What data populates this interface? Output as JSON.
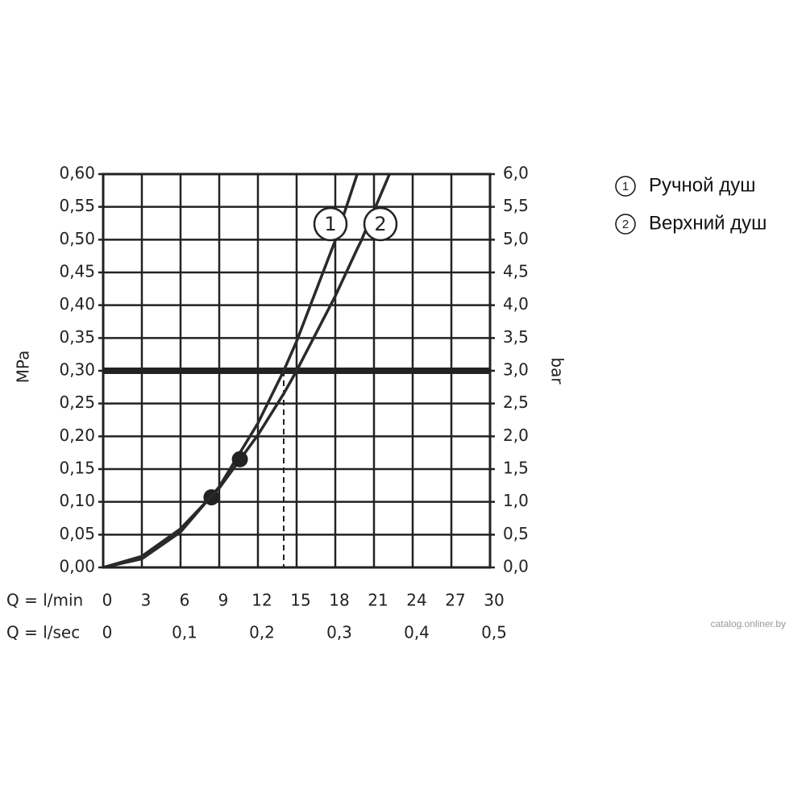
{
  "chart_data": {
    "type": "line",
    "xlabel": "Q = l/min",
    "x2label": "Q = l/sec",
    "ylabel": "MPa",
    "y2label": "bar",
    "xlim": [
      0,
      30
    ],
    "xticks": [
      0,
      3,
      6,
      9,
      12,
      15,
      18,
      21,
      24,
      27,
      30
    ],
    "x2lim": [
      0,
      0.5
    ],
    "x2ticks": [
      0,
      {
        "value": 0.1,
        "label": "0,1"
      },
      {
        "value": 0.2,
        "label": "0,2"
      },
      {
        "value": 0.3,
        "label": "0,3"
      },
      {
        "value": 0.4,
        "label": "0,4"
      },
      {
        "value": 0.5,
        "label": "0,5"
      }
    ],
    "ylim": [
      0,
      0.6
    ],
    "yticks": [
      {
        "value": 0,
        "label": "0,00"
      },
      {
        "value": 0.05,
        "label": "0,05"
      },
      {
        "value": 0.1,
        "label": "0,10"
      },
      {
        "value": 0.15,
        "label": "0,15"
      },
      {
        "value": 0.2,
        "label": "0,20"
      },
      {
        "value": 0.25,
        "label": "0,25"
      },
      {
        "value": 0.3,
        "label": "0,30"
      },
      {
        "value": 0.35,
        "label": "0,35"
      },
      {
        "value": 0.4,
        "label": "0,40"
      },
      {
        "value": 0.45,
        "label": "0,45"
      },
      {
        "value": 0.5,
        "label": "0,50"
      },
      {
        "value": 0.55,
        "label": "0,55"
      },
      {
        "value": 0.6,
        "label": "0,60"
      }
    ],
    "y2lim": [
      0,
      6
    ],
    "y2ticks": [
      {
        "value": 0,
        "label": "0,0"
      },
      {
        "value": 0.5,
        "label": "0,5"
      },
      {
        "value": 1,
        "label": "1,0"
      },
      {
        "value": 1.5,
        "label": "1,5"
      },
      {
        "value": 2,
        "label": "2,0"
      },
      {
        "value": 2.5,
        "label": "2,5"
      },
      {
        "value": 3,
        "label": "3,0"
      },
      {
        "value": 3.5,
        "label": "3,5"
      },
      {
        "value": 4,
        "label": "4,0"
      },
      {
        "value": 4.5,
        "label": "4,5"
      },
      {
        "value": 5,
        "label": "5,0"
      },
      {
        "value": 5.5,
        "label": "5,5"
      },
      {
        "value": 6,
        "label": "6,0"
      }
    ],
    "grid": true,
    "threshold": 0.3,
    "x": [
      0,
      3,
      6,
      9,
      12,
      14,
      15,
      18,
      19.7,
      20,
      22.2
    ],
    "series": [
      {
        "name": "Ручной душ",
        "label": "1",
        "color": "#2a2a2a",
        "values": [
          0,
          0.013,
          0.054,
          0.123,
          0.22,
          0.3,
          0.345,
          0.499,
          0.6,
          null,
          null
        ],
        "marker": {
          "x": 8.4,
          "y": 0.107
        },
        "drop_x": 14
      },
      {
        "name": "Верхний душ",
        "label": "2",
        "color": "#2a2a2a",
        "values": [
          0,
          0.017,
          0.059,
          0.121,
          0.202,
          0.265,
          0.3,
          0.414,
          0.486,
          0.498,
          0.6
        ],
        "marker": {
          "x": 10.6,
          "y": 0.165
        },
        "drop_x": 15
      }
    ],
    "watermark": "catalog.onliner.by"
  }
}
